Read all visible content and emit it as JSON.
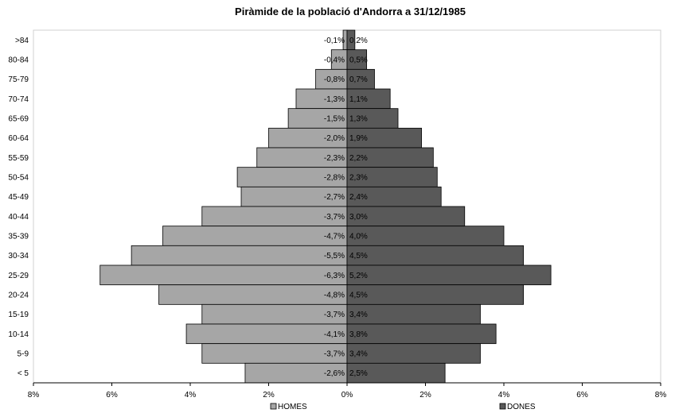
{
  "chart_data": {
    "type": "bar",
    "orientation": "horizontal",
    "title": "Piràmide de la població d'Andorra a 31/12/1985",
    "categories": [
      ">84",
      "80-84",
      "75-79",
      "70-74",
      "65-69",
      "60-64",
      "55-59",
      "50-54",
      "45-49",
      "40-44",
      "35-39",
      "30-34",
      "25-29",
      "20-24",
      "15-19",
      "10-14",
      "5-9",
      "< 5"
    ],
    "series": [
      {
        "name": "HOMES",
        "color": "#a6a6a6",
        "values": [
          -0.1,
          -0.4,
          -0.8,
          -1.3,
          -1.5,
          -2.0,
          -2.3,
          -2.8,
          -2.7,
          -3.7,
          -4.7,
          -5.5,
          -6.3,
          -4.8,
          -3.7,
          -4.1,
          -3.7,
          -2.6
        ],
        "data_labels": [
          "-0,1%",
          "-0,4%",
          "-0,8%",
          "-1,3%",
          "-1,5%",
          "-2,0%",
          "-2,3%",
          "-2,8%",
          "-2,7%",
          "-3,7%",
          "-4,7%",
          "-5,5%",
          "-6,3%",
          "-4,8%",
          "-3,7%",
          "-4,1%",
          "-3,7%",
          "-2,6%"
        ]
      },
      {
        "name": "DONES",
        "color": "#595959",
        "values": [
          0.2,
          0.5,
          0.7,
          1.1,
          1.3,
          1.9,
          2.2,
          2.3,
          2.4,
          3.0,
          4.0,
          4.5,
          5.2,
          4.5,
          3.4,
          3.8,
          3.4,
          2.5
        ],
        "data_labels": [
          "0,2%",
          "0,5%",
          "0,7%",
          "1,1%",
          "1,3%",
          "1,9%",
          "2,2%",
          "2,3%",
          "2,4%",
          "3,0%",
          "4,0%",
          "4,5%",
          "5,2%",
          "4,5%",
          "3,4%",
          "3,8%",
          "3,4%",
          "2,5%"
        ]
      }
    ],
    "xlim": [
      -8,
      8
    ],
    "x_ticks": [
      -8,
      -6,
      -4,
      -2,
      0,
      2,
      4,
      6,
      8
    ],
    "x_tick_labels": [
      "8%",
      "6%",
      "4%",
      "2%",
      "0%",
      "2%",
      "4%",
      "6%",
      "8%"
    ],
    "legend_position": "bottom",
    "grid": false
  }
}
